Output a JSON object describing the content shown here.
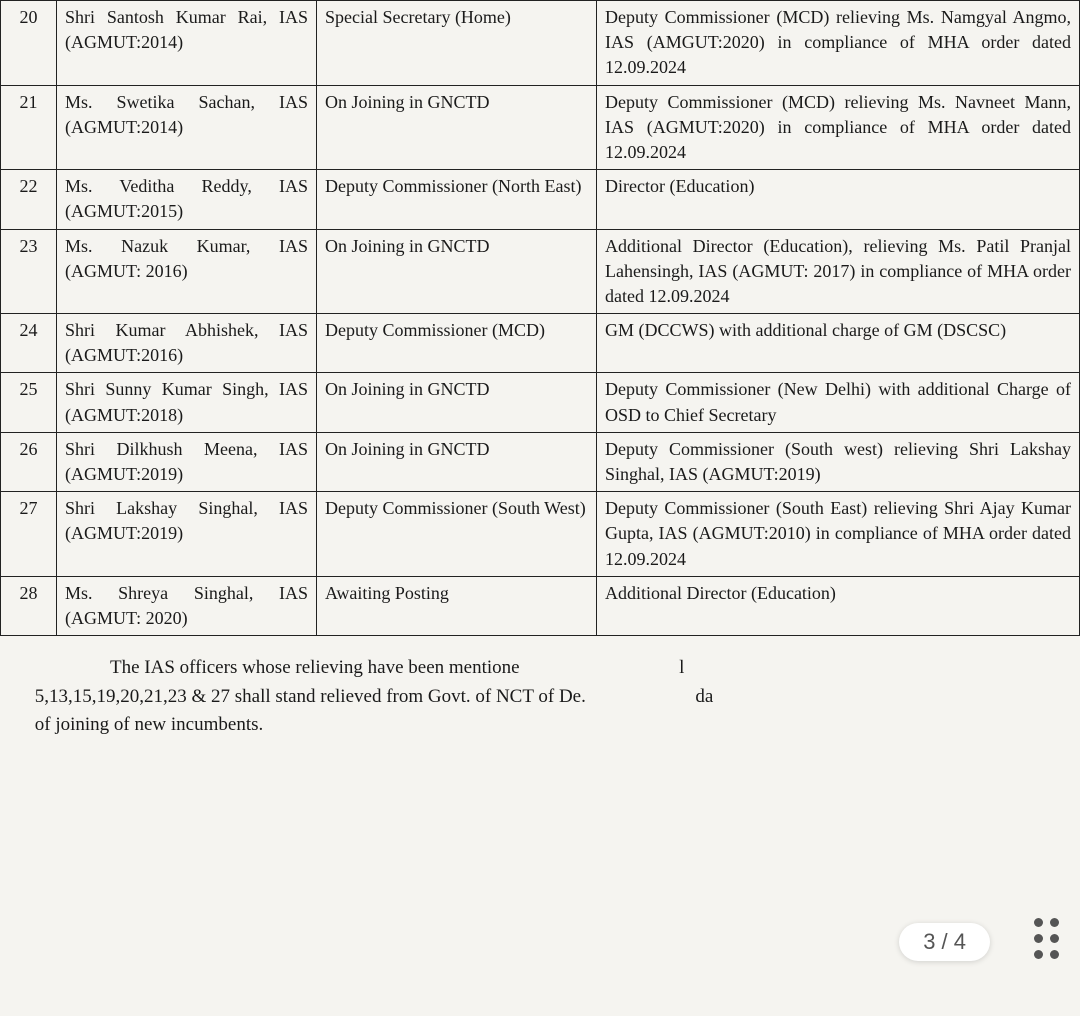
{
  "table": {
    "rows": [
      {
        "num": "20",
        "name": "Shri Santosh Kumar Rai, IAS (AGMUT:2014)",
        "post": "Special Secretary (Home)",
        "newpost": "Deputy Commissioner (MCD) relieving Ms. Namgyal Angmo, IAS (AMGUT:2020) in compliance of MHA order dated 12.09.2024"
      },
      {
        "num": "21",
        "name": "Ms. Swetika Sachan, IAS (AGMUT:2014)",
        "post": "On Joining in GNCTD",
        "newpost": "Deputy Commissioner (MCD) relieving Ms. Navneet Mann, IAS (AGMUT:2020) in compliance of MHA order dated 12.09.2024"
      },
      {
        "num": "22",
        "name": "Ms. Veditha Reddy, IAS (AGMUT:2015)",
        "post": "Deputy Commissioner (North East)",
        "newpost": "Director (Education)"
      },
      {
        "num": "23",
        "name": "Ms. Nazuk Kumar, IAS (AGMUT: 2016)",
        "post": "On Joining in GNCTD",
        "newpost": "Additional Director (Education), relieving Ms. Patil Pranjal Lahensingh, IAS (AGMUT: 2017) in compliance of MHA order dated 12.09.2024"
      },
      {
        "num": "24",
        "name": "Shri Kumar Abhishek, IAS (AGMUT:2016)",
        "post": "Deputy Commissioner (MCD)",
        "newpost": "GM (DCCWS) with additional charge of GM (DSCSC)"
      },
      {
        "num": "25",
        "name": "Shri Sunny Kumar Singh, IAS (AGMUT:2018)",
        "post": "On Joining in GNCTD",
        "newpost": "Deputy Commissioner (New Delhi) with additional Charge of OSD to Chief Secretary"
      },
      {
        "num": "26",
        "name": "Shri Dilkhush Meena, IAS (AGMUT:2019)",
        "post": "On Joining in GNCTD",
        "newpost": "Deputy Commissioner (South west) relieving Shri Lakshay Singhal, IAS (AGMUT:2019)"
      },
      {
        "num": "27",
        "name": "Shri Lakshay Singhal, IAS (AGMUT:2019)",
        "post": "Deputy Commissioner (South West)",
        "newpost": "Deputy Commissioner (South East) relieving Shri Ajay Kumar Gupta, IAS (AGMUT:2010) in compliance of MHA order dated 12.09.2024"
      },
      {
        "num": "28",
        "name": "Ms. Shreya Singhal, IAS (AGMUT: 2020)",
        "post": "Awaiting Posting",
        "newpost": "Additional Director (Education)"
      }
    ]
  },
  "paragraph": {
    "line1_a": "The IAS officers whose relieving have been mentione",
    "line1_b": "l",
    "line2_a": "5,13,15,19,20,21,23 & 27 shall stand relieved from Govt. of NCT of De.",
    "line2_b": "da",
    "line3": "of joining of new incumbents."
  },
  "pager": "3 / 4"
}
